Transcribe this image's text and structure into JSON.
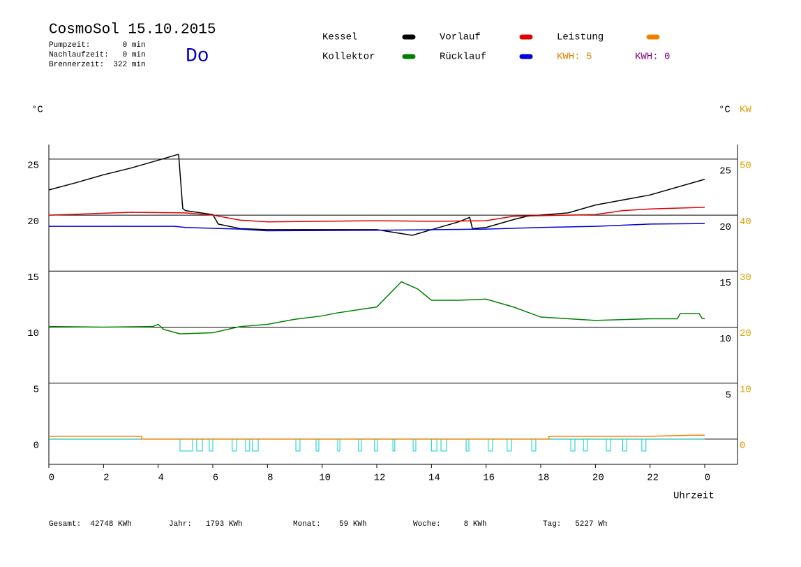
{
  "header": {
    "title": "CosmoSol 15.10.2015",
    "info": [
      "Pumpzeit:       0 min",
      "Nachlaufzeit:   0 min",
      "Brennerzeit:  322 min"
    ],
    "weekday": "Do"
  },
  "legend": [
    {
      "name": "Kessel",
      "color": "#000000"
    },
    {
      "name": "Vorlauf",
      "color": "#e00000"
    },
    {
      "name": "Leistung",
      "color": "#f08000"
    },
    {
      "name": "Kollektor",
      "color": "#008000"
    },
    {
      "name": "Rücklauf",
      "color": "#0000e0"
    }
  ],
  "kwh": [
    {
      "label": "KWH: 5",
      "color": "#e08000"
    },
    {
      "label": "KWH: 0",
      "color": "#800080"
    }
  ],
  "footer": [
    "Gesamt:  42748 KWh",
    "Jahr:   1793 KWh",
    "Monat:    59 KWh",
    "Woche:     8 KWh",
    "Tag:   5227 Wh"
  ],
  "chart_data": {
    "type": "line",
    "y_unit": "°C",
    "y2_unit_c": "°C",
    "y2_unit": "KW",
    "x_label": "Uhrzeit",
    "xlim": [
      0,
      25.2
    ],
    "xticks": [
      0,
      2,
      4,
      6,
      8,
      10,
      12,
      14,
      16,
      18,
      20,
      22,
      {
        "value": 24,
        "label": "0"
      }
    ],
    "ylim": [
      -2.25,
      26.3
    ],
    "yticks": [
      0,
      5,
      10,
      15,
      20,
      25
    ],
    "yticks_right": [
      5,
      10,
      15,
      20,
      25
    ],
    "y2lim": [
      -4.5,
      52.6
    ],
    "y2ticks": [
      0,
      10,
      20,
      30,
      40,
      50
    ],
    "grid": true,
    "series": [
      {
        "name": "Kessel",
        "color": "#000000",
        "x": [
          0,
          1,
          2,
          3,
          4,
          4.7,
          4.75,
          4.9,
          5,
          6,
          6.2,
          7,
          8,
          10,
          12,
          13.3,
          14,
          15,
          15.4,
          15.5,
          16,
          17,
          17.5,
          19,
          20,
          22,
          24
        ],
        "values": [
          22.25,
          22.9,
          23.6,
          24.2,
          24.9,
          25.4,
          25.4,
          20.6,
          20.4,
          20.05,
          19.2,
          18.8,
          18.7,
          18.7,
          18.7,
          18.2,
          18.7,
          19.4,
          19.8,
          18.8,
          18.9,
          19.6,
          19.9,
          20.2,
          20.9,
          21.8,
          23.2
        ]
      },
      {
        "name": "Vorlauf",
        "color": "#e00000",
        "x": [
          0,
          3,
          5,
          6,
          7,
          8,
          12,
          14,
          16,
          17,
          18,
          20,
          21,
          22,
          24
        ],
        "values": [
          20.0,
          20.25,
          20.2,
          20.0,
          19.55,
          19.4,
          19.5,
          19.45,
          19.5,
          19.9,
          19.95,
          20.05,
          20.4,
          20.55,
          20.7
        ]
      },
      {
        "name": "Rücklauf",
        "color": "#0000e0",
        "x": [
          0,
          4.6,
          5,
          7,
          8,
          12,
          16,
          18,
          20,
          22,
          24
        ],
        "values": [
          19.0,
          19.0,
          18.9,
          18.75,
          18.6,
          18.65,
          18.75,
          18.9,
          19.0,
          19.2,
          19.25
        ]
      },
      {
        "name": "Kollektor",
        "color": "#008000",
        "x": [
          0,
          2,
          3.8,
          4,
          4.2,
          4.8,
          6,
          7,
          8,
          9,
          10,
          10.5,
          12,
          12.5,
          12.9,
          13.5,
          14,
          15,
          16,
          17,
          18,
          20,
          22,
          23,
          23.1,
          23.8,
          23.9,
          24
        ],
        "values": [
          10.05,
          10.0,
          10.05,
          10.25,
          9.8,
          9.4,
          9.5,
          10.05,
          10.25,
          10.7,
          11.0,
          11.25,
          11.8,
          13.05,
          14.05,
          13.4,
          12.4,
          12.4,
          12.5,
          11.8,
          10.9,
          10.6,
          10.75,
          10.75,
          11.2,
          11.2,
          10.8,
          10.75
        ]
      },
      {
        "name": "Leistung",
        "color": "#f08000",
        "axis": "y2",
        "x": [
          0,
          3.4,
          3.4,
          18.3,
          18.3,
          22,
          23.5,
          24
        ],
        "values": [
          0.5,
          0.5,
          0,
          0,
          0.5,
          0.5,
          0.7,
          0.7
        ]
      }
    ],
    "pump": {
      "color": "#00d0d0",
      "intervals": [
        [
          4.8,
          5.26
        ],
        [
          5.41,
          5.62
        ],
        [
          5.87,
          6.0
        ],
        [
          6.71,
          6.87
        ],
        [
          7.2,
          7.35
        ],
        [
          7.45,
          7.66
        ],
        [
          9.04,
          9.19
        ],
        [
          9.78,
          9.88
        ],
        [
          10.57,
          10.65
        ],
        [
          11.33,
          11.44
        ],
        [
          11.92,
          12.03
        ],
        [
          12.59,
          12.66
        ],
        [
          13.33,
          13.43
        ],
        [
          14.0,
          14.2
        ],
        [
          14.35,
          14.55
        ],
        [
          15.27,
          15.37
        ],
        [
          16.08,
          16.24
        ],
        [
          16.77,
          16.93
        ],
        [
          17.67,
          17.82
        ],
        [
          19.1,
          19.25
        ],
        [
          19.56,
          19.71
        ],
        [
          20.4,
          20.55
        ],
        [
          21.0,
          21.15
        ],
        [
          21.7,
          21.85
        ]
      ]
    }
  }
}
